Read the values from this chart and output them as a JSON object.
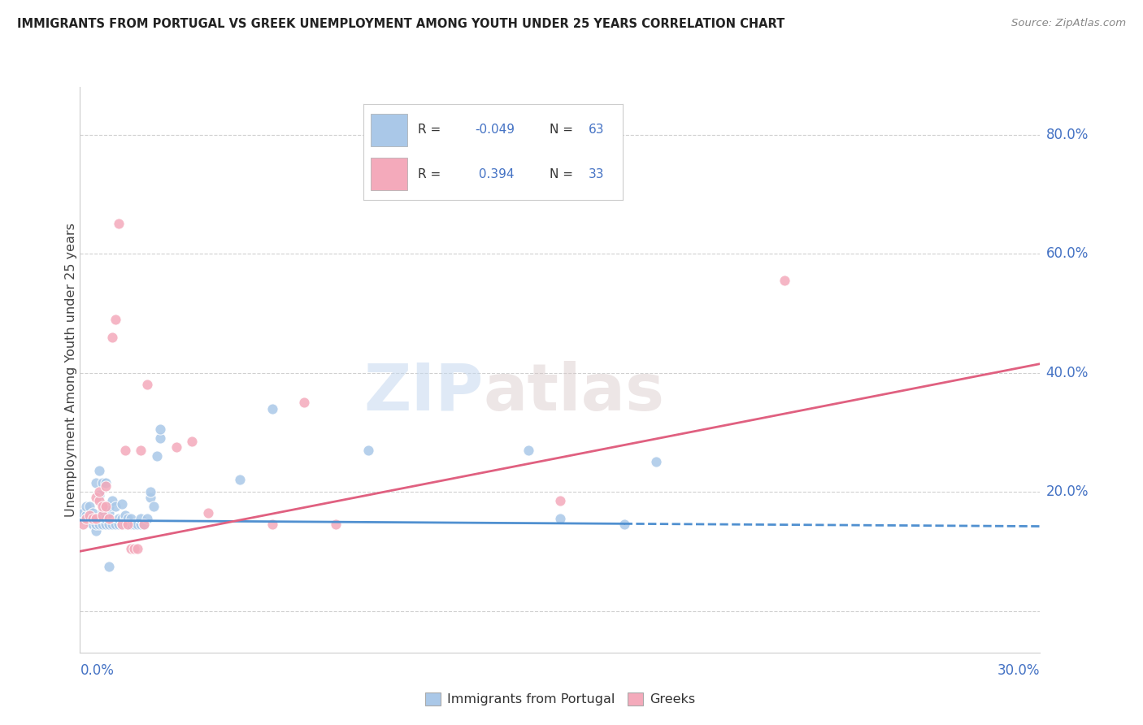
{
  "title": "IMMIGRANTS FROM PORTUGAL VS GREEK UNEMPLOYMENT AMONG YOUTH UNDER 25 YEARS CORRELATION CHART",
  "source": "Source: ZipAtlas.com",
  "ylabel": "Unemployment Among Youth under 25 years",
  "xmin": 0.0,
  "xmax": 0.3,
  "ymin": -0.07,
  "ymax": 0.88,
  "ytick_positions": [
    0.0,
    0.2,
    0.4,
    0.6,
    0.8
  ],
  "ytick_labels": [
    "",
    "20.0%",
    "40.0%",
    "60.0%",
    "80.0%"
  ],
  "blue_scatter": [
    [
      0.001,
      0.155
    ],
    [
      0.001,
      0.165
    ],
    [
      0.002,
      0.16
    ],
    [
      0.002,
      0.175
    ],
    [
      0.003,
      0.15
    ],
    [
      0.003,
      0.16
    ],
    [
      0.003,
      0.175
    ],
    [
      0.004,
      0.145
    ],
    [
      0.004,
      0.155
    ],
    [
      0.004,
      0.165
    ],
    [
      0.005,
      0.135
    ],
    [
      0.005,
      0.145
    ],
    [
      0.005,
      0.155
    ],
    [
      0.005,
      0.215
    ],
    [
      0.006,
      0.145
    ],
    [
      0.006,
      0.155
    ],
    [
      0.006,
      0.195
    ],
    [
      0.006,
      0.235
    ],
    [
      0.007,
      0.145
    ],
    [
      0.007,
      0.155
    ],
    [
      0.007,
      0.165
    ],
    [
      0.007,
      0.215
    ],
    [
      0.008,
      0.145
    ],
    [
      0.008,
      0.155
    ],
    [
      0.008,
      0.215
    ],
    [
      0.009,
      0.075
    ],
    [
      0.009,
      0.145
    ],
    [
      0.009,
      0.165
    ],
    [
      0.009,
      0.175
    ],
    [
      0.01,
      0.145
    ],
    [
      0.01,
      0.185
    ],
    [
      0.011,
      0.145
    ],
    [
      0.011,
      0.175
    ],
    [
      0.012,
      0.145
    ],
    [
      0.012,
      0.155
    ],
    [
      0.013,
      0.145
    ],
    [
      0.013,
      0.155
    ],
    [
      0.013,
      0.18
    ],
    [
      0.014,
      0.145
    ],
    [
      0.014,
      0.155
    ],
    [
      0.014,
      0.16
    ],
    [
      0.015,
      0.145
    ],
    [
      0.015,
      0.155
    ],
    [
      0.016,
      0.145
    ],
    [
      0.016,
      0.155
    ],
    [
      0.017,
      0.145
    ],
    [
      0.018,
      0.145
    ],
    [
      0.019,
      0.145
    ],
    [
      0.019,
      0.155
    ],
    [
      0.02,
      0.145
    ],
    [
      0.021,
      0.155
    ],
    [
      0.022,
      0.19
    ],
    [
      0.022,
      0.2
    ],
    [
      0.023,
      0.175
    ],
    [
      0.024,
      0.26
    ],
    [
      0.025,
      0.29
    ],
    [
      0.025,
      0.305
    ],
    [
      0.05,
      0.22
    ],
    [
      0.06,
      0.34
    ],
    [
      0.09,
      0.27
    ],
    [
      0.14,
      0.27
    ],
    [
      0.15,
      0.155
    ],
    [
      0.17,
      0.145
    ],
    [
      0.18,
      0.25
    ]
  ],
  "pink_scatter": [
    [
      0.001,
      0.145
    ],
    [
      0.002,
      0.155
    ],
    [
      0.003,
      0.16
    ],
    [
      0.004,
      0.155
    ],
    [
      0.005,
      0.155
    ],
    [
      0.005,
      0.19
    ],
    [
      0.006,
      0.185
    ],
    [
      0.006,
      0.2
    ],
    [
      0.007,
      0.16
    ],
    [
      0.007,
      0.175
    ],
    [
      0.008,
      0.175
    ],
    [
      0.008,
      0.21
    ],
    [
      0.009,
      0.155
    ],
    [
      0.01,
      0.46
    ],
    [
      0.011,
      0.49
    ],
    [
      0.012,
      0.65
    ],
    [
      0.013,
      0.145
    ],
    [
      0.014,
      0.27
    ],
    [
      0.015,
      0.145
    ],
    [
      0.016,
      0.105
    ],
    [
      0.017,
      0.105
    ],
    [
      0.018,
      0.105
    ],
    [
      0.019,
      0.27
    ],
    [
      0.02,
      0.145
    ],
    [
      0.021,
      0.38
    ],
    [
      0.03,
      0.275
    ],
    [
      0.035,
      0.285
    ],
    [
      0.04,
      0.165
    ],
    [
      0.06,
      0.145
    ],
    [
      0.07,
      0.35
    ],
    [
      0.08,
      0.145
    ],
    [
      0.15,
      0.185
    ],
    [
      0.22,
      0.555
    ]
  ],
  "blue_line_x": [
    0.0,
    0.3
  ],
  "blue_line_y": [
    0.152,
    0.142
  ],
  "pink_line_x": [
    0.0,
    0.3
  ],
  "pink_line_y": [
    0.1,
    0.415
  ],
  "blue_color": "#aac8e8",
  "pink_color": "#f4aabb",
  "blue_line_color": "#5090d0",
  "pink_line_color": "#e06080",
  "watermark_zip": "ZIP",
  "watermark_atlas": "atlas",
  "background_color": "#ffffff",
  "grid_color": "#d0d0d0",
  "right_label_color": "#4472c4",
  "title_color": "#222222",
  "legend_r_color": "#4472c4",
  "legend_n_color": "#4472c4"
}
